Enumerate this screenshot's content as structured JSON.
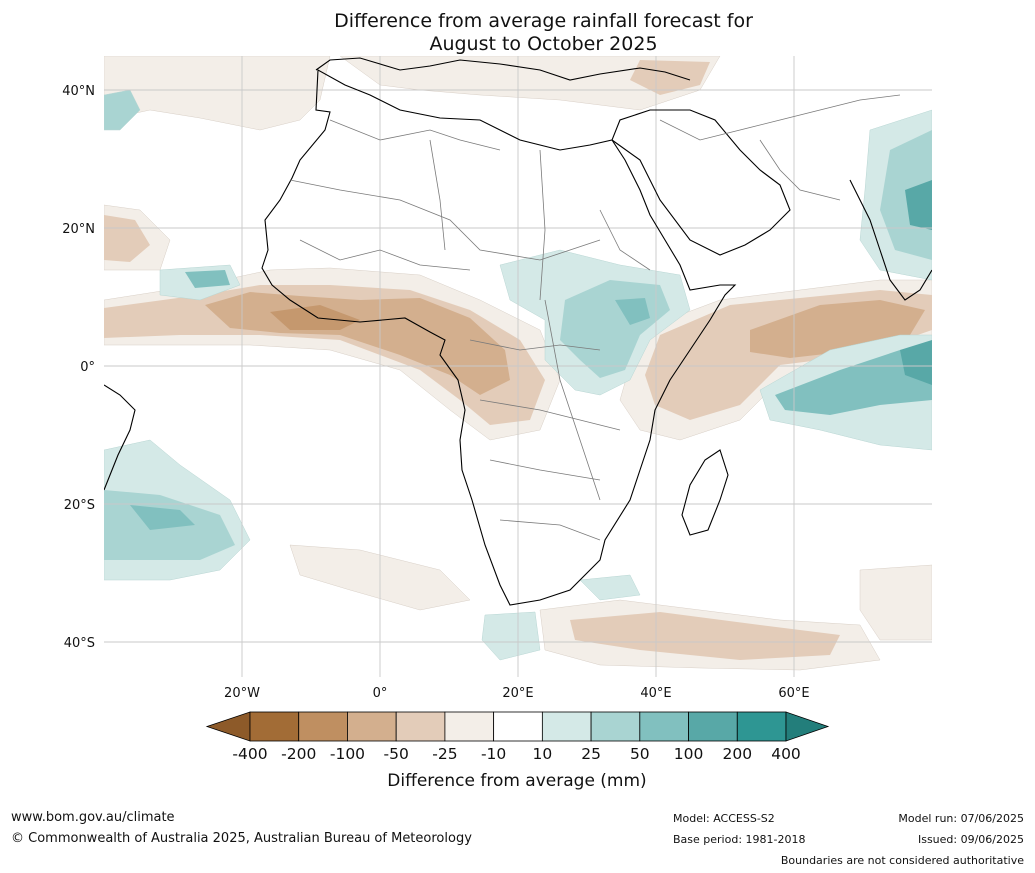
{
  "title_line1": "Difference from average rainfall forecast for",
  "title_line2": "August to October 2025",
  "lat_labels": [
    "40°N",
    "20°N",
    "0°",
    "20°S",
    "40°S"
  ],
  "lon_labels": [
    "20°W",
    "0°",
    "20°E",
    "40°E",
    "60°E"
  ],
  "colorbar": {
    "title": "Difference from average (mm)",
    "tick_labels": [
      "-400",
      "-200",
      "-100",
      "-50",
      "-25",
      "-10",
      "10",
      "25",
      "50",
      "100",
      "200",
      "400"
    ],
    "colors": [
      "#a26c36",
      "#bf8f61",
      "#d3af8e",
      "#e3ccb9",
      "#f3eee8",
      "#ffffff",
      "#d4e9e7",
      "#a9d4d2",
      "#81c0bf",
      "#58a8a7",
      "#2e9693"
    ],
    "low_extend_color": "#8d5a29",
    "high_extend_color": "#237e7b"
  },
  "footer": {
    "website": "www.bom.gov.au/climate",
    "copyright": "© Commonwealth of Australia 2025, Australian Bureau of Meteorology",
    "model": "Model: ACCESS-S2",
    "base_period": "Base period: 1981-2018",
    "model_run": "Model run: 07/06/2025",
    "issued": "Issued: 09/06/2025",
    "disclaimer": "Boundaries are not considered authoritative"
  }
}
